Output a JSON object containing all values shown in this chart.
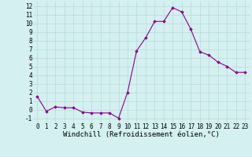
{
  "hours": [
    0,
    1,
    2,
    3,
    4,
    5,
    6,
    7,
    8,
    9,
    10,
    11,
    12,
    13,
    14,
    15,
    16,
    17,
    18,
    19,
    20,
    21,
    22,
    23
  ],
  "values": [
    1.5,
    -0.2,
    0.3,
    0.2,
    0.2,
    -0.3,
    -0.4,
    -0.4,
    -0.4,
    -1.0,
    2.0,
    6.8,
    8.3,
    10.2,
    10.2,
    11.8,
    11.3,
    9.3,
    6.7,
    6.3,
    5.5,
    5.0,
    4.3,
    4.3
  ],
  "line_color": "#8B008B",
  "marker": "D",
  "markersize": 1.8,
  "linewidth": 0.8,
  "bg_color": "#d4f0f0",
  "grid_color": "#b8dada",
  "xlabel": "Windchill (Refroidissement éolien,°C)",
  "ylim": [
    -1.5,
    12.5
  ],
  "xlim": [
    -0.5,
    23.5
  ],
  "yticks": [
    -1,
    0,
    1,
    2,
    3,
    4,
    5,
    6,
    7,
    8,
    9,
    10,
    11,
    12
  ],
  "xticks": [
    0,
    1,
    2,
    3,
    4,
    5,
    6,
    7,
    8,
    9,
    10,
    11,
    12,
    13,
    14,
    15,
    16,
    17,
    18,
    19,
    20,
    21,
    22,
    23
  ],
  "xlabel_fontsize": 6.5,
  "tick_fontsize": 5.5
}
